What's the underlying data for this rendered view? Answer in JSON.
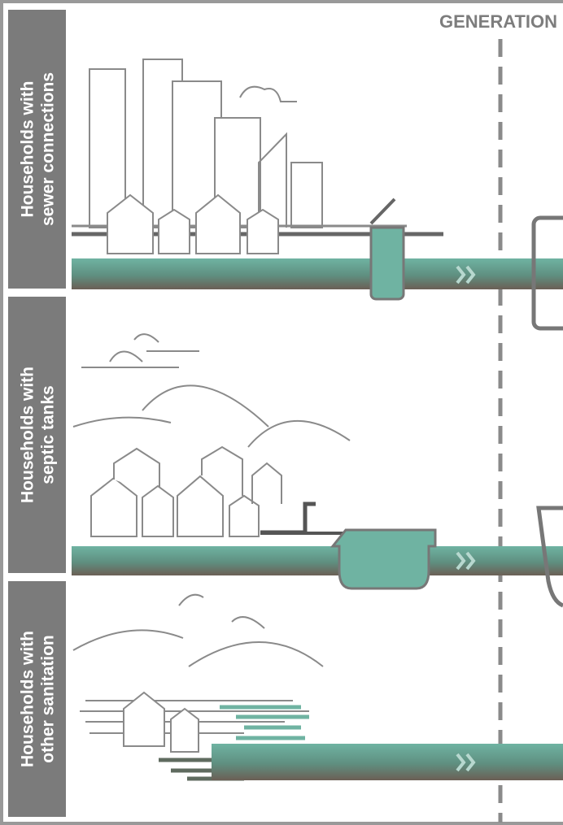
{
  "header": {
    "title": "GENERATION"
  },
  "rows": [
    {
      "label": [
        "Households with",
        "sewer connections"
      ]
    },
    {
      "label": [
        "Households with",
        "septic tanks"
      ]
    },
    {
      "label": [
        "Households with",
        "other sanitation"
      ]
    }
  ]
}
